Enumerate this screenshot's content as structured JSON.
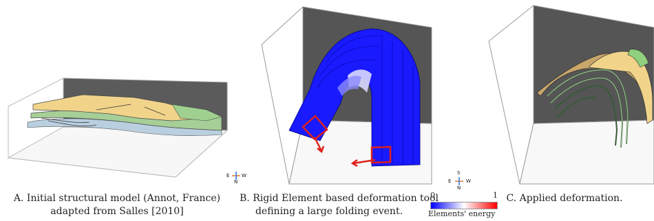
{
  "panels": [
    {
      "id": "A",
      "caption_lines": [
        "A. Initial structural model (Annot, France)",
        "adapted from Salles [2010]"
      ]
    },
    {
      "id": "B",
      "caption_lines": [
        "B. Rigid Element based deformation tool",
        "defining a large folding event."
      ]
    },
    {
      "id": "C",
      "caption_lines": [
        "C. Applied deformation."
      ]
    }
  ],
  "compass": {
    "east": "E",
    "west": "W",
    "north": "N",
    "south": "S"
  },
  "legend": {
    "title": "Elements' energy",
    "min_label": "0",
    "max_label": "1",
    "min_color": "#0000ff",
    "max_color": "#ff0000"
  },
  "colors": {
    "yellow": "#f1d48a",
    "green": "#a6cf98",
    "blue_block": "#1a1aff",
    "handle": "#e0201a",
    "grey_wall": "#555555"
  }
}
